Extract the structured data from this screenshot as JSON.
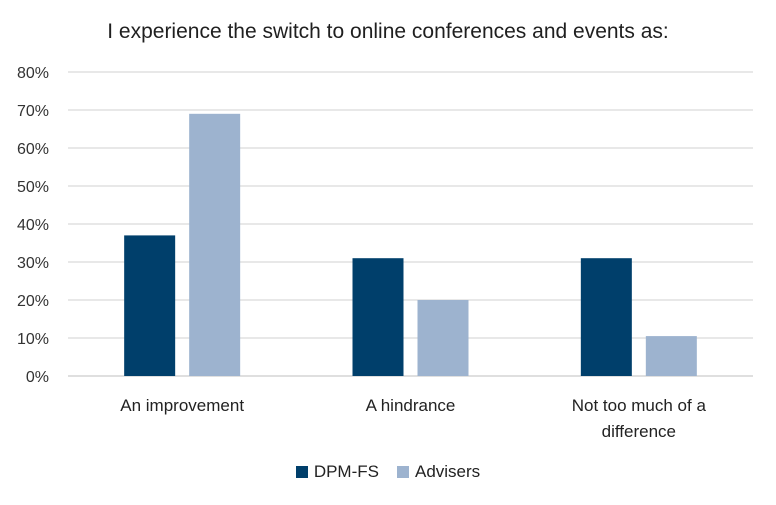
{
  "chart_data": {
    "type": "bar",
    "title": "I experience the switch to online conferences and events as:",
    "categories": [
      "An improvement",
      "A hindrance",
      "Not too much of a difference"
    ],
    "category_lines": [
      [
        "An improvement"
      ],
      [
        "A hindrance"
      ],
      [
        "Not too much of a",
        "difference"
      ]
    ],
    "series": [
      {
        "name": "DPM-FS",
        "color": "#003f6b",
        "values": [
          37,
          31,
          31
        ]
      },
      {
        "name": "Advisers",
        "color": "#9db3cf",
        "values": [
          69,
          20,
          10.5
        ]
      }
    ],
    "ylim": [
      0,
      80
    ],
    "yticks": [
      0,
      10,
      20,
      30,
      40,
      50,
      60,
      70,
      80
    ],
    "ytick_labels": [
      "0%",
      "10%",
      "20%",
      "30%",
      "40%",
      "50%",
      "60%",
      "70%",
      "80%"
    ],
    "grid": true,
    "legend_position": "bottom"
  }
}
